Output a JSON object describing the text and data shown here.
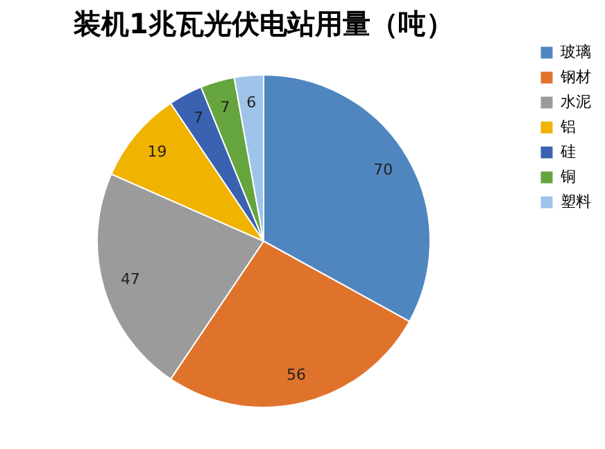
{
  "chart_data": {
    "type": "pie",
    "title": "装机1兆瓦光伏电站用量（吨）",
    "categories": [
      "玻璃",
      "钢材",
      "水泥",
      "铝",
      "硅",
      "铜",
      "塑料"
    ],
    "values": [
      70,
      56,
      47,
      19,
      7,
      7,
      6
    ],
    "colors": [
      "#4f86c0",
      "#e0732c",
      "#9b9b9b",
      "#f0b300",
      "#3a62b0",
      "#66a43e",
      "#9ec4ea"
    ],
    "data_labels": true,
    "legend": "right"
  }
}
